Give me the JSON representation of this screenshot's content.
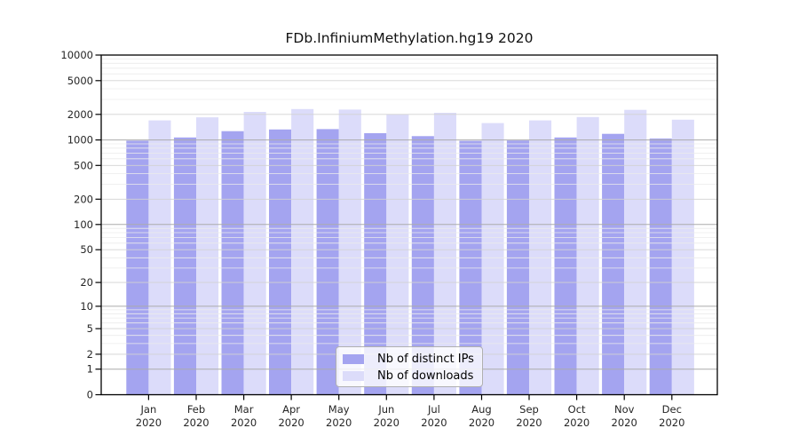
{
  "chart_data": {
    "type": "bar",
    "title": "FDb.InfiniumMethylation.hg19 2020",
    "categories": [
      "Jan",
      "Feb",
      "Mar",
      "Apr",
      "May",
      "Jun",
      "Jul",
      "Aug",
      "Sep",
      "Oct",
      "Nov",
      "Dec"
    ],
    "x_tick_second_line": "2020",
    "series": [
      {
        "name": "Nb of distinct IPs",
        "color": "#a4a4f0",
        "values": [
          980,
          1070,
          1270,
          1330,
          1340,
          1200,
          1110,
          975,
          985,
          1070,
          1180,
          1040
        ]
      },
      {
        "name": "Nb of downloads",
        "color": "#dcdcfa",
        "values": [
          1700,
          1850,
          2140,
          2310,
          2280,
          1990,
          2090,
          1580,
          1700,
          1860,
          2260,
          1730
        ]
      }
    ],
    "y_axis": {
      "ticks": [
        0,
        1,
        2,
        5,
        10,
        20,
        50,
        100,
        200,
        500,
        1000,
        2000,
        5000,
        10000
      ],
      "scale": "log1p",
      "range": [
        0,
        10000
      ]
    },
    "grid": {
      "horizontal": true,
      "major_color": "#ababab",
      "mid_color": "#d2d2d2",
      "minor_color": "#ebebeb"
    },
    "legend_position": "lower-center",
    "colors": {
      "axis": "#000000",
      "tick_label": "#262626"
    }
  }
}
